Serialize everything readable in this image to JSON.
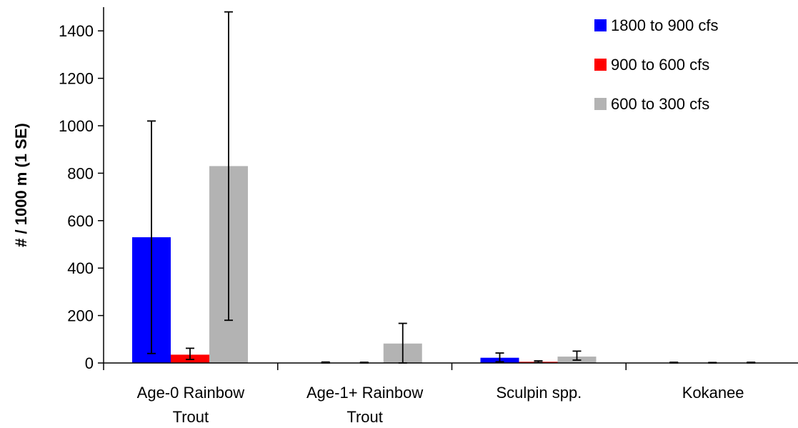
{
  "chart_data": {
    "type": "bar",
    "title": "",
    "xlabel": "",
    "ylabel": "# / 1000 m (1 SE)",
    "ylim": [
      0,
      1500
    ],
    "yticks": [
      0,
      200,
      400,
      600,
      800,
      1000,
      1200,
      1400
    ],
    "categories": [
      [
        "Age-0 Rainbow",
        "Trout"
      ],
      [
        "Age-1+ Rainbow",
        "Trout"
      ],
      [
        "Sculpin spp."
      ],
      [
        "Kokanee"
      ]
    ],
    "series": [
      {
        "name": "1800 to 900 cfs",
        "color": "#0000ff",
        "values": [
          530,
          0,
          22,
          0
        ],
        "err_low": [
          40,
          0,
          5,
          0
        ],
        "err_high": [
          1020,
          4,
          42,
          3
        ]
      },
      {
        "name": "900 to 600 cfs",
        "color": "#ff0000",
        "values": [
          35,
          0,
          5,
          0
        ],
        "err_low": [
          15,
          0,
          2,
          0
        ],
        "err_high": [
          62,
          3,
          9,
          2
        ]
      },
      {
        "name": "600 to 300 cfs",
        "color": "#b3b3b3",
        "values": [
          830,
          82,
          27,
          0
        ],
        "err_low": [
          180,
          0,
          12,
          0
        ],
        "err_high": [
          1480,
          167,
          50,
          3
        ]
      }
    ],
    "grid": false,
    "legend": "top-right"
  }
}
